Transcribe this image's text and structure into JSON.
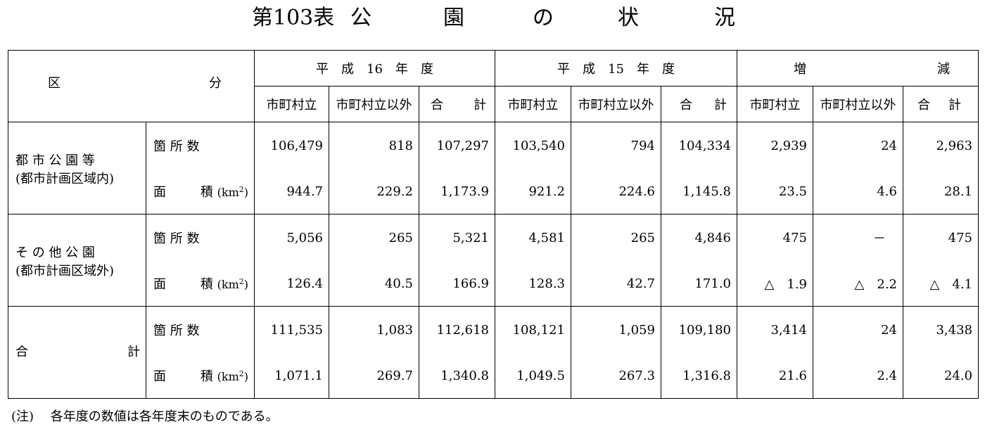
{
  "title": {
    "number": "第103表",
    "c1": "公",
    "c2": "園",
    "c3": "の",
    "c4": "状",
    "c5": "況"
  },
  "header": {
    "category_left": "区",
    "category_right": "分",
    "groups": [
      "平　成　16　年　度",
      "平　成　15　年　度"
    ],
    "diff_left": "増",
    "diff_right": "減",
    "sub": {
      "municipal": "市町村立",
      "non_municipal": "市町村立以外",
      "total_left": "合",
      "total_right": "計"
    }
  },
  "items": {
    "count": "箇 所 数",
    "area_left": "面",
    "area_right": "積",
    "area_unit": "(km",
    "area_unit_sup": "2",
    "area_unit_close": ")"
  },
  "rows": [
    {
      "name_line1": "都 市 公 園 等",
      "name_line2": "(都市計画区域内)",
      "count": [
        "106,479",
        "818",
        "107,297",
        "103,540",
        "794",
        "104,334",
        "2,939",
        "24",
        "2,963"
      ],
      "area": [
        "944.7",
        "229.2",
        "1,173.9",
        "921.2",
        "224.6",
        "1,145.8",
        "23.5",
        "4.6",
        "28.1"
      ]
    },
    {
      "name_line1": "そ の 他 公 園",
      "name_line2": "(都市計画区域外)",
      "count": [
        "5,056",
        "265",
        "5,321",
        "4,581",
        "265",
        "4,846",
        "475",
        "－",
        "475"
      ],
      "area": [
        "126.4",
        "40.5",
        "166.9",
        "128.3",
        "42.7",
        "171.0",
        "△　1.9",
        "△　2.2",
        "△　4.1"
      ]
    },
    {
      "name_left": "合",
      "name_right": "計",
      "count": [
        "111,535",
        "1,083",
        "112,618",
        "108,121",
        "1,059",
        "109,180",
        "3,414",
        "24",
        "3,438"
      ],
      "area": [
        "1,071.1",
        "269.7",
        "1,340.8",
        "1,049.5",
        "267.3",
        "1,316.8",
        "21.6",
        "2.4",
        "24.0"
      ]
    }
  ],
  "note": "(注)　 各年度の数値は各年度末のものである。"
}
